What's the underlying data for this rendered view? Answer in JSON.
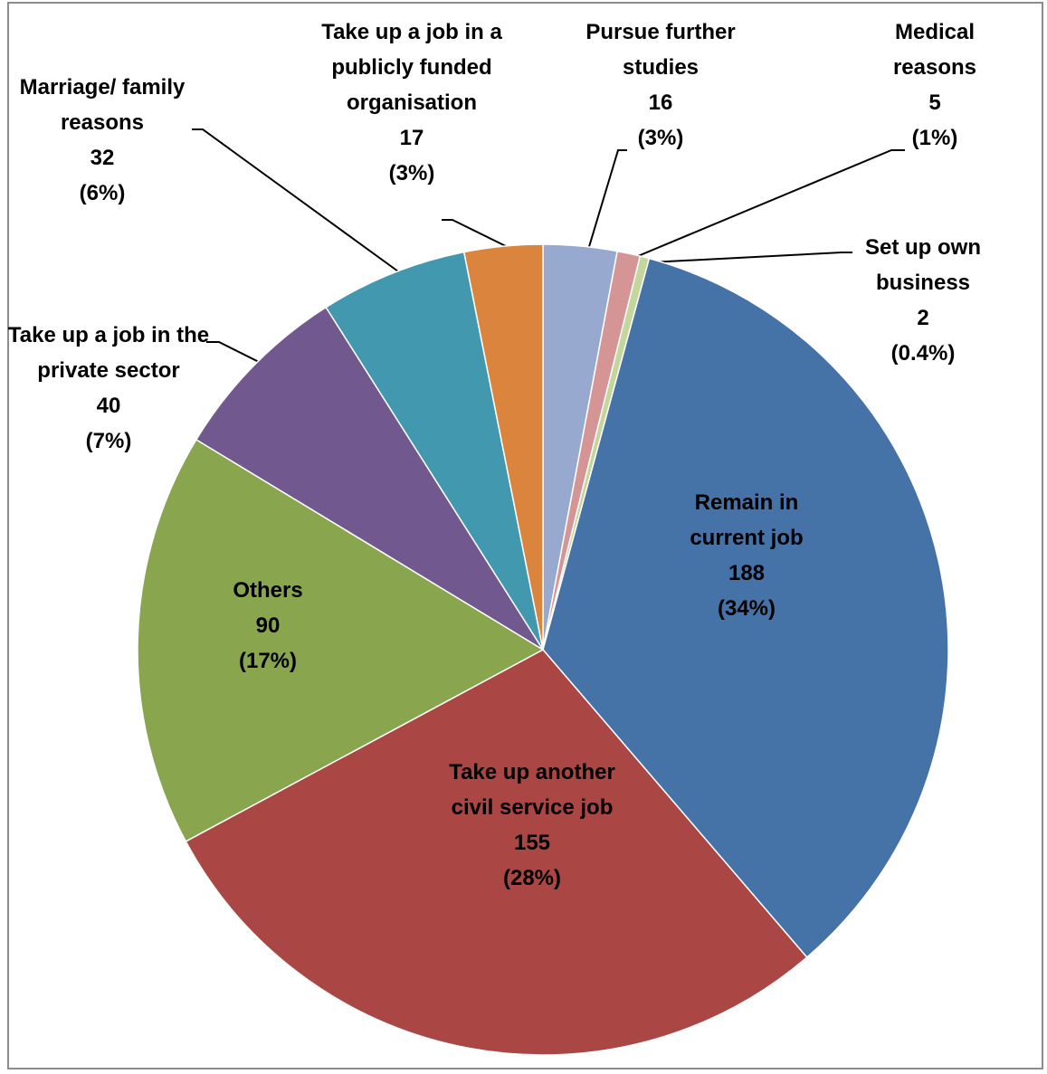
{
  "chart_data": {
    "type": "pie",
    "categories": [
      "Pursue further studies",
      "Medical reasons",
      "Set up own business",
      "Remain in current job",
      "Take up another civil service job",
      "Others",
      "Take up a job in the private sector",
      "Marriage/ family reasons",
      "Take up a job in a publicly funded organisation"
    ],
    "values": [
      16,
      5,
      2,
      188,
      155,
      90,
      40,
      32,
      17
    ],
    "percentages": [
      3,
      1,
      0.4,
      34,
      28,
      17,
      7,
      6,
      3
    ],
    "percentage_labels": [
      "(3%)",
      "(1%)",
      "(0.4%)",
      "(34%)",
      "(28%)",
      "(17%)",
      "(7%)",
      "(6%)",
      "(3%)"
    ],
    "colors": [
      "#98a9d0",
      "#d69595",
      "#c3d69b",
      "#4572a7",
      "#aa4643",
      "#89a54e",
      "#71588f",
      "#4198af",
      "#db843d"
    ]
  }
}
